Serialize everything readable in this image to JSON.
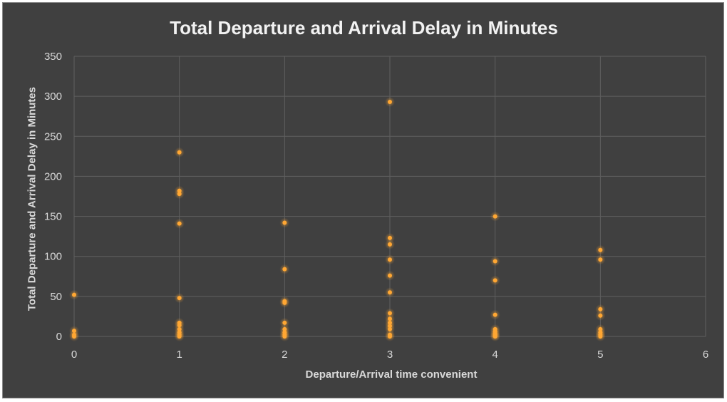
{
  "chart_data": {
    "type": "scatter",
    "title": "Total Departure and Arrival Delay in Minutes",
    "xlabel": "Departure/Arrival time convenient",
    "ylabel": "Total Departure and Arrival Delay in Minutes",
    "xlim": [
      0,
      6
    ],
    "ylim": [
      0,
      350
    ],
    "xticks": [
      0,
      1,
      2,
      3,
      4,
      5,
      6
    ],
    "yticks": [
      0,
      50,
      100,
      150,
      200,
      250,
      300,
      350
    ],
    "grid": true,
    "legend": "none",
    "marker_color": "#ffa733",
    "background_color": "#404040",
    "grid_color": "#5f5f5f",
    "points": [
      {
        "x": 0,
        "y": 52
      },
      {
        "x": 0,
        "y": 7
      },
      {
        "x": 0,
        "y": 2
      },
      {
        "x": 0,
        "y": 0
      },
      {
        "x": 1,
        "y": 230
      },
      {
        "x": 1,
        "y": 182
      },
      {
        "x": 1,
        "y": 178
      },
      {
        "x": 1,
        "y": 141
      },
      {
        "x": 1,
        "y": 48
      },
      {
        "x": 1,
        "y": 17
      },
      {
        "x": 1,
        "y": 14
      },
      {
        "x": 1,
        "y": 9
      },
      {
        "x": 1,
        "y": 5
      },
      {
        "x": 1,
        "y": 2
      },
      {
        "x": 1,
        "y": 0
      },
      {
        "x": 2,
        "y": 142
      },
      {
        "x": 2,
        "y": 84
      },
      {
        "x": 2,
        "y": 44
      },
      {
        "x": 2,
        "y": 42
      },
      {
        "x": 2,
        "y": 17
      },
      {
        "x": 2,
        "y": 9
      },
      {
        "x": 2,
        "y": 5
      },
      {
        "x": 2,
        "y": 2
      },
      {
        "x": 2,
        "y": 0
      },
      {
        "x": 3,
        "y": 293
      },
      {
        "x": 3,
        "y": 123
      },
      {
        "x": 3,
        "y": 115
      },
      {
        "x": 3,
        "y": 96
      },
      {
        "x": 3,
        "y": 76
      },
      {
        "x": 3,
        "y": 55
      },
      {
        "x": 3,
        "y": 29
      },
      {
        "x": 3,
        "y": 22
      },
      {
        "x": 3,
        "y": 17
      },
      {
        "x": 3,
        "y": 13
      },
      {
        "x": 3,
        "y": 9
      },
      {
        "x": 3,
        "y": 2
      },
      {
        "x": 3,
        "y": 0
      },
      {
        "x": 4,
        "y": 150
      },
      {
        "x": 4,
        "y": 94
      },
      {
        "x": 4,
        "y": 70
      },
      {
        "x": 4,
        "y": 27
      },
      {
        "x": 4,
        "y": 9
      },
      {
        "x": 4,
        "y": 6
      },
      {
        "x": 4,
        "y": 3
      },
      {
        "x": 4,
        "y": 1
      },
      {
        "x": 4,
        "y": 0
      },
      {
        "x": 5,
        "y": 108
      },
      {
        "x": 5,
        "y": 96
      },
      {
        "x": 5,
        "y": 34
      },
      {
        "x": 5,
        "y": 26
      },
      {
        "x": 5,
        "y": 9
      },
      {
        "x": 5,
        "y": 5
      },
      {
        "x": 5,
        "y": 2
      },
      {
        "x": 5,
        "y": 0
      }
    ]
  }
}
